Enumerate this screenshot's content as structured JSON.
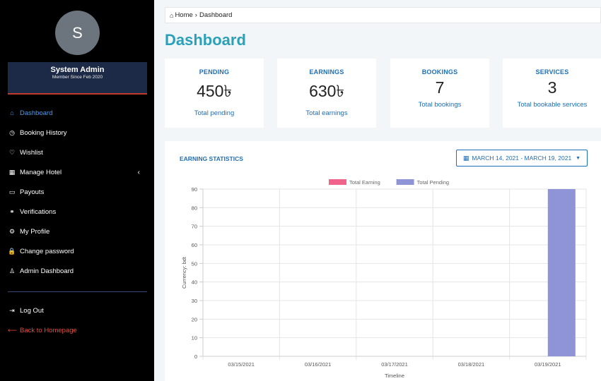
{
  "profile": {
    "avatar_letter": "S",
    "name": "System Admin",
    "member_since": "Member Since Feb 2020"
  },
  "sidebar": {
    "items": [
      {
        "label": "Dashboard",
        "icon": "home-icon",
        "glyph": "⌂"
      },
      {
        "label": "Booking History",
        "icon": "clock-icon",
        "glyph": "◷"
      },
      {
        "label": "Wishlist",
        "icon": "heart-icon",
        "glyph": "♡"
      },
      {
        "label": "Manage Hotel",
        "icon": "building-icon",
        "glyph": "▦"
      },
      {
        "label": "Payouts",
        "icon": "card-icon",
        "glyph": "▭"
      },
      {
        "label": "Verifications",
        "icon": "handshake-icon",
        "glyph": "⚭"
      },
      {
        "label": "My Profile",
        "icon": "gears-icon",
        "glyph": "⚙"
      },
      {
        "label": "Change password",
        "icon": "lock-icon",
        "glyph": "🔒"
      },
      {
        "label": "Admin Dashboard",
        "icon": "user-lock-icon",
        "glyph": "♙"
      }
    ],
    "bottom": [
      {
        "label": "Log Out",
        "icon": "sign-out-icon",
        "glyph": "⇥"
      },
      {
        "label": "Back to Homepage",
        "icon": "long-arrow-left-icon",
        "glyph": "⟵"
      }
    ]
  },
  "breadcrumb": {
    "home": "Home",
    "separator": "›",
    "current": "Dashboard"
  },
  "page_title": "Dashboard",
  "stats": [
    {
      "label": "PENDING",
      "value": "450৳",
      "sub": "Total pending"
    },
    {
      "label": "EARNINGS",
      "value": "630৳",
      "sub": "Total earnings"
    },
    {
      "label": "BOOKINGS",
      "value": "7",
      "sub": "Total bookings"
    },
    {
      "label": "SERVICES",
      "value": "3",
      "sub": "Total bookable services"
    }
  ],
  "panel": {
    "title": "EARNING STATISTICS",
    "date_range": "MARCH 14, 2021 - MARCH 19, 2021"
  },
  "colors": {
    "accent": "#2aa1b8",
    "primary": "#1d6fb8",
    "earning": "#f0648c",
    "pending": "#8e94d6"
  },
  "chart_data": {
    "type": "bar",
    "categories": [
      "03/15/2021",
      "03/16/2021",
      "03/17/2021",
      "03/18/2021",
      "03/19/2021"
    ],
    "series": [
      {
        "name": "Total Earning",
        "values": [
          0,
          0,
          0,
          0,
          0
        ]
      },
      {
        "name": "Total Pending",
        "values": [
          0,
          0,
          0,
          0,
          90
        ]
      }
    ],
    "xlabel": "Timeline",
    "ylabel": "Currency: bdt",
    "ylim": [
      0,
      90
    ],
    "yticks": [
      0,
      10,
      20,
      30,
      40,
      50,
      60,
      70,
      80,
      90
    ],
    "grid": true,
    "legend": "top"
  }
}
